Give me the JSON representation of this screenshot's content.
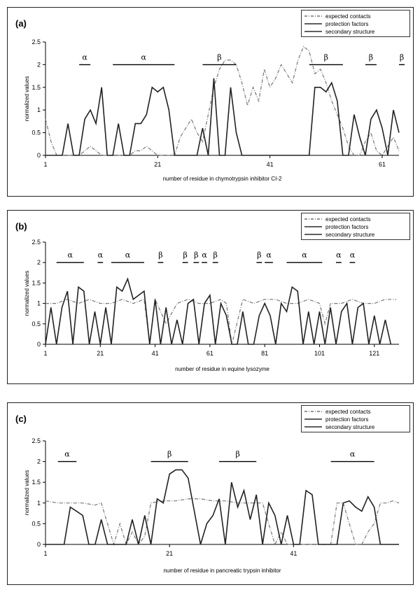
{
  "chart_data": [
    {
      "type": "line",
      "panel_label": "(a)",
      "xlabel": "number of residue in chymotrypsin inhibitor CI-2",
      "ylabel": "normalized values",
      "ylim": [
        0,
        2.5
      ],
      "yticks": [
        "0",
        "0.5",
        "1",
        "1.5",
        "2",
        "2.5"
      ],
      "xlim": [
        1,
        64
      ],
      "xticks": [
        1,
        21,
        41,
        61
      ],
      "legend": [
        "expected contacts",
        "protection factors",
        "secondary structure"
      ],
      "legend_position": "top-right",
      "series": [
        {
          "name": "expected contacts",
          "style": "dashdot",
          "x": [
            1,
            2,
            3,
            4,
            5,
            6,
            7,
            8,
            9,
            10,
            11,
            12,
            13,
            14,
            15,
            16,
            17,
            18,
            19,
            20,
            21,
            22,
            23,
            24,
            25,
            26,
            27,
            28,
            29,
            30,
            31,
            32,
            33,
            34,
            35,
            36,
            37,
            38,
            39,
            40,
            41,
            42,
            43,
            44,
            45,
            46,
            47,
            48,
            49,
            50,
            51,
            52,
            53,
            54,
            55,
            56,
            57,
            58,
            59,
            60,
            61,
            62,
            63,
            64
          ],
          "values": [
            0.8,
            0.3,
            0,
            0,
            0,
            0,
            0,
            0.1,
            0.2,
            0.1,
            0,
            0,
            0,
            0,
            0,
            0,
            0.1,
            0.1,
            0.2,
            0.1,
            0,
            0,
            0,
            0,
            0.4,
            0.6,
            0.8,
            0.5,
            0.3,
            0.9,
            1.5,
            1.9,
            2.1,
            2.1,
            2.0,
            1.6,
            1.1,
            1.5,
            1.2,
            1.9,
            1.5,
            1.7,
            2.0,
            1.8,
            1.6,
            2.1,
            2.4,
            2.3,
            1.8,
            1.9,
            1.6,
            1.2,
            0.9,
            0.6,
            0.2,
            0,
            0,
            0.3,
            0.5,
            0.1,
            0,
            0.2,
            0.4,
            0.1
          ]
        },
        {
          "name": "protection factors",
          "style": "solid",
          "x": [
            1,
            2,
            3,
            4,
            5,
            6,
            7,
            8,
            9,
            10,
            11,
            12,
            13,
            14,
            15,
            16,
            17,
            18,
            19,
            20,
            21,
            22,
            23,
            24,
            25,
            26,
            27,
            28,
            29,
            30,
            31,
            32,
            33,
            34,
            35,
            36,
            37,
            38,
            39,
            40,
            41,
            42,
            43,
            44,
            45,
            46,
            47,
            48,
            49,
            50,
            51,
            52,
            53,
            54,
            55,
            56,
            57,
            58,
            59,
            60,
            61,
            62,
            63,
            64
          ],
          "values": [
            0,
            0,
            0,
            0,
            0.7,
            0,
            0,
            0.8,
            1.0,
            0.7,
            1.5,
            0,
            0,
            0.7,
            0,
            0,
            0.7,
            0.7,
            0.9,
            1.5,
            1.4,
            1.5,
            1.0,
            0,
            0,
            0,
            0,
            0,
            0.6,
            0,
            1.7,
            0,
            0,
            1.5,
            0.5,
            0,
            0,
            0,
            0,
            0,
            0,
            0,
            0,
            0,
            0,
            0,
            0,
            0,
            1.5,
            1.5,
            1.4,
            1.6,
            1.2,
            0,
            0,
            0.9,
            0.4,
            0,
            0.8,
            1.0,
            0.6,
            0,
            1.0,
            0.5
          ]
        }
      ],
      "secondary_structure": [
        {
          "label": "α",
          "start": 7,
          "end": 9
        },
        {
          "label": "α",
          "start": 13,
          "end": 24
        },
        {
          "label": "β",
          "start": 29,
          "end": 35
        },
        {
          "label": "β",
          "start": 48,
          "end": 54
        },
        {
          "label": "β",
          "start": 58,
          "end": 60
        },
        {
          "label": "β",
          "start": 64,
          "end": 65
        }
      ]
    },
    {
      "type": "line",
      "panel_label": "(b)",
      "xlabel": "number of residue in equine lysozyme",
      "ylabel": "normalized values",
      "ylim": [
        0,
        2.5
      ],
      "yticks": [
        "0",
        "0.5",
        "1",
        "1.5",
        "2",
        "2.5"
      ],
      "xlim": [
        1,
        130
      ],
      "xticks": [
        1,
        21,
        41,
        61,
        81,
        101,
        121
      ],
      "legend": [
        "expected contacts",
        "protection factors",
        "secondary structure"
      ],
      "legend_position": "top-right",
      "series": [
        {
          "name": "expected contacts",
          "style": "dashdot",
          "x": [
            1,
            5,
            9,
            13,
            17,
            21,
            25,
            29,
            33,
            37,
            39,
            41,
            45,
            49,
            53,
            57,
            61,
            65,
            67,
            69,
            73,
            77,
            81,
            85,
            89,
            93,
            97,
            101,
            103,
            105,
            109,
            113,
            117,
            121,
            125,
            129
          ],
          "values": [
            1.0,
            1.0,
            1.1,
            1.0,
            1.1,
            1.0,
            1.0,
            1.1,
            1.0,
            1.1,
            0.0,
            1.1,
            0.5,
            1.0,
            1.1,
            1.0,
            1.0,
            1.1,
            1.0,
            0.0,
            1.1,
            1.0,
            1.1,
            1.1,
            1.0,
            1.0,
            1.1,
            1.0,
            0.5,
            1.0,
            1.0,
            1.1,
            1.0,
            1.0,
            1.1,
            1.1
          ]
        },
        {
          "name": "protection factors",
          "style": "solid",
          "x": [
            1,
            3,
            5,
            7,
            9,
            11,
            13,
            15,
            17,
            19,
            21,
            23,
            25,
            27,
            29,
            31,
            33,
            35,
            37,
            39,
            41,
            43,
            45,
            47,
            49,
            51,
            53,
            55,
            57,
            59,
            61,
            63,
            65,
            67,
            69,
            71,
            73,
            75,
            77,
            79,
            81,
            83,
            85,
            87,
            89,
            91,
            93,
            95,
            97,
            99,
            101,
            103,
            105,
            107,
            109,
            111,
            113,
            115,
            117,
            119,
            121,
            123,
            125,
            127
          ],
          "values": [
            0,
            0.9,
            0,
            0.9,
            1.3,
            0,
            1.4,
            1.3,
            0,
            0.8,
            0,
            0.9,
            0,
            1.4,
            1.3,
            1.6,
            1.1,
            1.2,
            1.3,
            0,
            1.1,
            0,
            0.9,
            0,
            0.6,
            0,
            1.0,
            1.1,
            0,
            1.0,
            1.2,
            0,
            1.0,
            0.7,
            0,
            0,
            0.8,
            0,
            0,
            0.7,
            1.0,
            0.7,
            0,
            1.0,
            0.8,
            1.4,
            1.3,
            0,
            0.8,
            0,
            0.8,
            0,
            0.9,
            0,
            0.8,
            1.0,
            0,
            0.9,
            1.0,
            0,
            0.7,
            0,
            0.6,
            0
          ]
        }
      ],
      "secondary_structure": [
        {
          "label": "α",
          "start": 5,
          "end": 15
        },
        {
          "label": "α",
          "start": 20,
          "end": 22
        },
        {
          "label": "α",
          "start": 25,
          "end": 37
        },
        {
          "label": "β",
          "start": 42,
          "end": 44
        },
        {
          "label": "β",
          "start": 51,
          "end": 53
        },
        {
          "label": "β",
          "start": 55,
          "end": 57
        },
        {
          "label": "α",
          "start": 58,
          "end": 60
        },
        {
          "label": "β",
          "start": 62,
          "end": 64
        },
        {
          "label": "β",
          "start": 78,
          "end": 80
        },
        {
          "label": "α",
          "start": 81,
          "end": 84
        },
        {
          "label": "α",
          "start": 89,
          "end": 102
        },
        {
          "label": "α",
          "start": 107,
          "end": 109
        },
        {
          "label": "α",
          "start": 112,
          "end": 114
        }
      ]
    },
    {
      "type": "line",
      "panel_label": "(c)",
      "xlabel": "number of residue in pancreatic trypsin inhibitor",
      "ylabel": "normalized values",
      "ylim": [
        0,
        2.5
      ],
      "yticks": [
        "0",
        "0.5",
        "1",
        "1.5",
        "2",
        "2.5"
      ],
      "xlim": [
        1,
        58
      ],
      "xticks": [
        1,
        21,
        41
      ],
      "legend": [
        "expected contacts",
        "protection factors",
        "secondary structure"
      ],
      "legend_position": "top-right",
      "series": [
        {
          "name": "expected contacts",
          "style": "dashdot",
          "x": [
            1,
            3,
            5,
            7,
            9,
            10,
            11,
            12,
            13,
            14,
            15,
            16,
            17,
            18,
            20,
            22,
            24,
            26,
            28,
            30,
            32,
            34,
            36,
            37,
            38,
            39,
            40,
            41,
            42,
            43,
            44,
            45,
            46,
            47,
            48,
            49,
            50,
            51,
            52,
            53,
            54,
            55,
            56,
            57,
            58
          ],
          "values": [
            1.05,
            1.0,
            1.0,
            1.0,
            0.95,
            1.0,
            0.5,
            0.0,
            0.5,
            0.0,
            0.3,
            0.0,
            0.2,
            1.0,
            1.05,
            1.05,
            1.1,
            1.1,
            1.05,
            1.05,
            1.0,
            1.0,
            1.0,
            0.5,
            0.0,
            0.3,
            0.0,
            0.0,
            0.0,
            0.0,
            0.0,
            0.0,
            0.0,
            0.0,
            1.0,
            1.0,
            0.5,
            0.0,
            0.0,
            0.3,
            0.5,
            1.0,
            1.0,
            1.05,
            1.0
          ]
        },
        {
          "name": "protection factors",
          "style": "solid",
          "x": [
            1,
            2,
            3,
            4,
            5,
            6,
            7,
            8,
            9,
            10,
            11,
            12,
            13,
            14,
            15,
            16,
            17,
            18,
            19,
            20,
            21,
            22,
            23,
            24,
            25,
            26,
            27,
            28,
            29,
            30,
            31,
            32,
            33,
            34,
            35,
            36,
            37,
            38,
            39,
            40,
            41,
            42,
            43,
            44,
            45,
            46,
            47,
            48,
            49,
            50,
            51,
            52,
            53,
            54,
            55,
            56,
            57,
            58
          ],
          "values": [
            0,
            0,
            0,
            0,
            0.9,
            0.8,
            0.7,
            0,
            0,
            0.6,
            0,
            0,
            0,
            0,
            0.6,
            0,
            0.7,
            0,
            1.1,
            1.0,
            1.7,
            1.8,
            1.8,
            1.6,
            0.8,
            0,
            0.5,
            0.7,
            1.1,
            0,
            1.5,
            0.9,
            1.3,
            0.6,
            1.2,
            0,
            1.0,
            0.7,
            0,
            0.7,
            0,
            0,
            1.3,
            1.2,
            0,
            0,
            0,
            0,
            1.0,
            1.05,
            0.9,
            0.8,
            1.15,
            0.9,
            0,
            0,
            0,
            0
          ]
        }
      ],
      "secondary_structure": [
        {
          "label": "α",
          "start": 3,
          "end": 6
        },
        {
          "label": "β",
          "start": 18,
          "end": 24
        },
        {
          "label": "β",
          "start": 29,
          "end": 35
        },
        {
          "label": "α",
          "start": 47,
          "end": 54
        }
      ]
    }
  ]
}
